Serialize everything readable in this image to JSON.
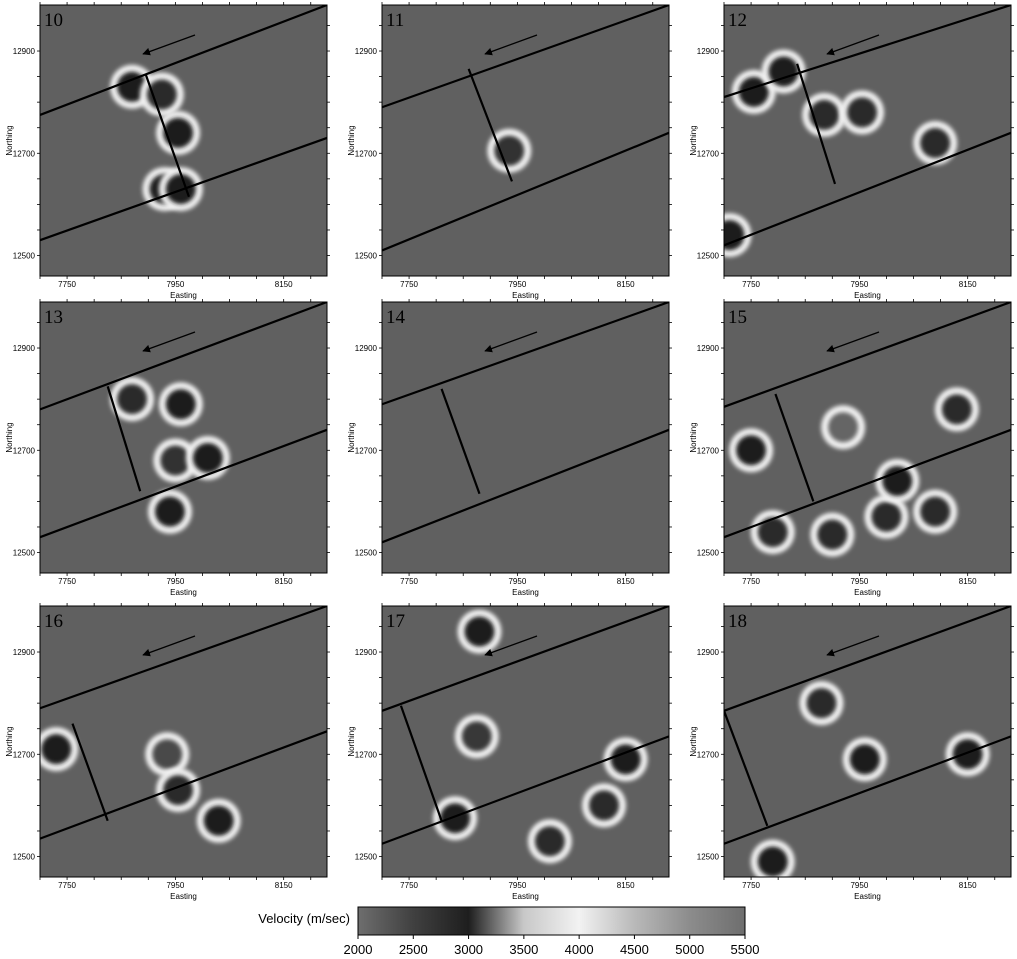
{
  "figure": {
    "colorbar": {
      "label": "Velocity (m/sec)",
      "ticks": [
        "2000",
        "2500",
        "3000",
        "3500",
        "4000",
        "4500",
        "5000",
        "5500"
      ],
      "range": [
        2000,
        5500
      ],
      "stops": [
        {
          "v": 2000,
          "color": "#6e6e6e"
        },
        {
          "v": 2500,
          "color": "#404040"
        },
        {
          "v": 3000,
          "color": "#1e1e1e"
        },
        {
          "v": 3500,
          "color": "#c8c8c8"
        },
        {
          "v": 4000,
          "color": "#f2f2f2"
        },
        {
          "v": 4500,
          "color": "#b9b9b9"
        },
        {
          "v": 5000,
          "color": "#8c8c8c"
        },
        {
          "v": 5500,
          "color": "#6e6e6e"
        }
      ]
    }
  },
  "chart_data": {
    "type": "heatmap",
    "grid": "3x3",
    "xlabel": "Easting",
    "ylabel": "Northing",
    "x_ticks": [
      "7750",
      "7950",
      "8150"
    ],
    "y_ticks": [
      "12900",
      "12700",
      "12500"
    ],
    "xlim": [
      7700,
      8230
    ],
    "ylim": [
      12460,
      12990
    ],
    "panels": [
      {
        "label": "10",
        "lines": {
          "upper": [
            [
              7700,
              12775
            ],
            [
              8230,
              12990
            ]
          ],
          "lower": [
            [
              7700,
              12530
            ],
            [
              8230,
              12730
            ]
          ],
          "cross": [
            [
              7895,
              12855
            ],
            [
              7975,
              12615
            ]
          ]
        },
        "anomalies": [
          {
            "x": 7870,
            "y": 12830,
            "v": 3000
          },
          {
            "x": 7925,
            "y": 12815,
            "v": 2800
          },
          {
            "x": 7955,
            "y": 12740,
            "v": 3000
          },
          {
            "x": 7930,
            "y": 12630,
            "v": 3000
          },
          {
            "x": 7960,
            "y": 12630,
            "v": 3000
          }
        ]
      },
      {
        "label": "11",
        "lines": {
          "upper": [
            [
              7700,
              12790
            ],
            [
              8230,
              12990
            ]
          ],
          "lower": [
            [
              7700,
              12510
            ],
            [
              8230,
              12740
            ]
          ],
          "cross": [
            [
              7860,
              12865
            ],
            [
              7940,
              12645
            ]
          ]
        },
        "anomalies": [
          {
            "x": 7935,
            "y": 12705,
            "v": 2700
          }
        ]
      },
      {
        "label": "12",
        "lines": {
          "upper": [
            [
              7700,
              12810
            ],
            [
              8230,
              12990
            ]
          ],
          "lower": [
            [
              7700,
              12520
            ],
            [
              8230,
              12740
            ]
          ],
          "cross": [
            [
              7835,
              12875
            ],
            [
              7905,
              12640
            ]
          ]
        },
        "anomalies": [
          {
            "x": 7755,
            "y": 12820,
            "v": 3000
          },
          {
            "x": 7810,
            "y": 12860,
            "v": 3000
          },
          {
            "x": 7885,
            "y": 12775,
            "v": 2800
          },
          {
            "x": 7955,
            "y": 12780,
            "v": 2800
          },
          {
            "x": 8090,
            "y": 12720,
            "v": 2800
          },
          {
            "x": 7710,
            "y": 12540,
            "v": 3000
          }
        ]
      },
      {
        "label": "13",
        "lines": {
          "upper": [
            [
              7700,
              12780
            ],
            [
              8230,
              12990
            ]
          ],
          "lower": [
            [
              7700,
              12530
            ],
            [
              8230,
              12740
            ]
          ],
          "cross": [
            [
              7825,
              12825
            ],
            [
              7885,
              12620
            ]
          ]
        },
        "anomalies": [
          {
            "x": 7870,
            "y": 12800,
            "v": 2800
          },
          {
            "x": 7960,
            "y": 12790,
            "v": 3000
          },
          {
            "x": 7950,
            "y": 12680,
            "v": 2700
          },
          {
            "x": 8010,
            "y": 12685,
            "v": 3000
          },
          {
            "x": 7940,
            "y": 12580,
            "v": 3000
          }
        ]
      },
      {
        "label": "14",
        "lines": {
          "upper": [
            [
              7700,
              12790
            ],
            [
              8230,
              12990
            ]
          ],
          "lower": [
            [
              7700,
              12520
            ],
            [
              8230,
              12740
            ]
          ],
          "cross": [
            [
              7810,
              12820
            ],
            [
              7880,
              12615
            ]
          ]
        },
        "anomalies": []
      },
      {
        "label": "15",
        "lines": {
          "upper": [
            [
              7700,
              12785
            ],
            [
              8230,
              12990
            ]
          ],
          "lower": [
            [
              7700,
              12530
            ],
            [
              8230,
              12740
            ]
          ],
          "cross": [
            [
              7795,
              12810
            ],
            [
              7865,
              12600
            ]
          ]
        },
        "anomalies": [
          {
            "x": 7920,
            "y": 12745,
            "v": 2100
          },
          {
            "x": 8130,
            "y": 12780,
            "v": 2800
          },
          {
            "x": 7750,
            "y": 12700,
            "v": 3000
          },
          {
            "x": 7790,
            "y": 12540,
            "v": 2800
          },
          {
            "x": 7900,
            "y": 12535,
            "v": 2800
          },
          {
            "x": 8000,
            "y": 12570,
            "v": 2800
          },
          {
            "x": 8090,
            "y": 12580,
            "v": 2800
          },
          {
            "x": 8020,
            "y": 12640,
            "v": 3000
          }
        ]
      },
      {
        "label": "16",
        "lines": {
          "upper": [
            [
              7700,
              12790
            ],
            [
              8230,
              12990
            ]
          ],
          "lower": [
            [
              7700,
              12535
            ],
            [
              8230,
              12745
            ]
          ],
          "cross": [
            [
              7760,
              12760
            ],
            [
              7825,
              12570
            ]
          ]
        },
        "anomalies": [
          {
            "x": 7935,
            "y": 12700,
            "v": 2400
          },
          {
            "x": 7955,
            "y": 12630,
            "v": 2800
          },
          {
            "x": 8030,
            "y": 12570,
            "v": 3000
          },
          {
            "x": 7730,
            "y": 12710,
            "v": 3000
          }
        ]
      },
      {
        "label": "17",
        "lines": {
          "upper": [
            [
              7700,
              12785
            ],
            [
              8230,
              12990
            ]
          ],
          "lower": [
            [
              7700,
              12525
            ],
            [
              8230,
              12735
            ]
          ],
          "cross": [
            [
              7735,
              12795
            ],
            [
              7810,
              12570
            ]
          ]
        },
        "anomalies": [
          {
            "x": 7875,
            "y": 12735,
            "v": 2600
          },
          {
            "x": 7835,
            "y": 12575,
            "v": 3000
          },
          {
            "x": 8010,
            "y": 12530,
            "v": 2800
          },
          {
            "x": 8110,
            "y": 12600,
            "v": 2800
          },
          {
            "x": 8150,
            "y": 12690,
            "v": 3000
          },
          {
            "x": 7880,
            "y": 12940,
            "v": 3000
          }
        ]
      },
      {
        "label": "18",
        "lines": {
          "upper": [
            [
              7700,
              12785
            ],
            [
              8230,
              12990
            ]
          ],
          "lower": [
            [
              7700,
              12525
            ],
            [
              8230,
              12735
            ]
          ],
          "cross": [
            [
              7700,
              12785
            ],
            [
              7780,
              12560
            ]
          ]
        },
        "anomalies": [
          {
            "x": 7880,
            "y": 12800,
            "v": 2800
          },
          {
            "x": 7960,
            "y": 12690,
            "v": 3000
          },
          {
            "x": 7790,
            "y": 12490,
            "v": 3000
          },
          {
            "x": 8150,
            "y": 12700,
            "v": 3000
          }
        ]
      }
    ],
    "colorbar": {
      "label": "Velocity (m/sec)",
      "ticks": [
        2000,
        2500,
        3000,
        3500,
        4000,
        4500,
        5000,
        5500
      ]
    }
  }
}
